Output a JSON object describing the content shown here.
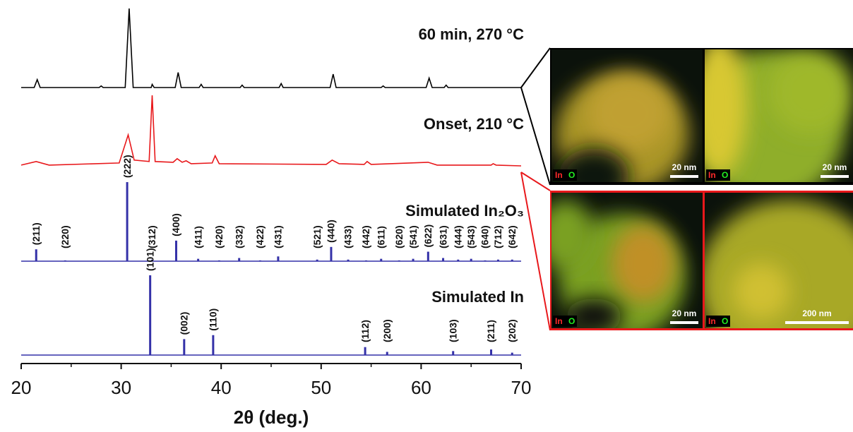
{
  "chart_data": {
    "type": "xrd-stack",
    "xlabel": "2θ (deg.)",
    "xlim": [
      20,
      70
    ],
    "xticks": [
      20,
      30,
      40,
      50,
      60,
      70
    ],
    "panels": [
      {
        "name": "60 min, 270 °C",
        "type": "line",
        "color": "#000000",
        "x": [
          20,
          21.3,
          21.6,
          21.9,
          27.8,
          28,
          28.2,
          30.4,
          30.8,
          31.2,
          33,
          33.1,
          33.3,
          35.4,
          35.7,
          36,
          37.8,
          38,
          38.2,
          41.9,
          42.1,
          42.3,
          45.8,
          46,
          46.2,
          50.9,
          51.2,
          51.5,
          56,
          56.2,
          56.4,
          60.5,
          60.8,
          61.1,
          62.3,
          62.5,
          62.7,
          70
        ],
        "values": [
          0,
          0,
          10,
          0,
          0,
          2,
          0,
          0,
          100,
          0,
          0,
          4,
          0,
          0,
          19,
          0,
          0,
          4,
          0,
          0,
          3,
          0,
          0,
          5,
          0,
          0,
          17,
          0,
          0,
          2,
          0,
          0,
          12,
          0,
          0,
          3,
          0,
          0
        ]
      },
      {
        "name": "Onset, 210 °C",
        "type": "line",
        "color": "#e8181b",
        "x": [
          20,
          21.5,
          22.8,
          29.8,
          30.7,
          31.3,
          32.8,
          33.1,
          33.4,
          35.2,
          35.6,
          36.1,
          36.5,
          37,
          39.1,
          39.4,
          39.8,
          50.5,
          51.1,
          51.8,
          54.3,
          54.6,
          55,
          60.7,
          61.6,
          67,
          67.2,
          67.5,
          70
        ],
        "values": [
          3,
          8,
          3,
          6,
          45,
          10,
          8,
          100,
          8,
          7,
          12,
          7,
          9,
          5,
          6,
          16,
          5,
          4,
          10,
          5,
          4,
          8,
          4,
          7,
          3,
          3,
          5,
          3,
          2
        ]
      },
      {
        "name": "Simulated In₂O₃",
        "type": "stick",
        "color": "#3431a8",
        "x": [
          21.5,
          24.4,
          30.6,
          33.1,
          35.5,
          37.7,
          39.8,
          41.8,
          43.9,
          45.7,
          49.6,
          51.0,
          52.7,
          54.5,
          56.0,
          57.8,
          59.2,
          60.7,
          62.2,
          63.7,
          65.0,
          66.4,
          67.7,
          69.1
        ],
        "values": [
          15,
          1,
          100,
          2,
          26,
          3,
          1,
          4,
          1,
          6,
          2,
          18,
          2,
          1,
          3,
          1,
          3,
          12,
          4,
          2,
          3,
          1,
          2,
          2
        ],
        "labels": [
          "(211)",
          "(220)",
          "(222)",
          "(312)",
          "(400)",
          "(411)",
          "(420)",
          "(332)",
          "(422)",
          "(431)",
          "(521)",
          "(440)",
          "(433)",
          "(442)",
          "(611)",
          "(620)",
          "(541)",
          "(622)",
          "(631)",
          "(444)",
          "(543)",
          "(640)",
          "(712)",
          "(642)"
        ]
      },
      {
        "name": "Simulated In",
        "type": "stick",
        "color": "#3431a8",
        "x": [
          32.9,
          36.3,
          39.2,
          54.4,
          56.6,
          63.2,
          67.0,
          69.1
        ],
        "values": [
          100,
          20,
          25,
          10,
          4,
          5,
          7,
          3
        ],
        "labels": [
          "(101)",
          "(002)",
          "(110)",
          "(112)",
          "(200)",
          "(103)",
          "(211)",
          "(202)"
        ]
      }
    ]
  },
  "images": [
    {
      "elements": [
        "In",
        "O"
      ],
      "scale": "20 nm"
    },
    {
      "elements": [
        "In",
        "O"
      ],
      "scale": "20 nm"
    },
    {
      "elements": [
        "In",
        "O"
      ],
      "scale": "20 nm"
    },
    {
      "elements": [
        "In",
        "O"
      ],
      "scale": "200 nm"
    }
  ]
}
